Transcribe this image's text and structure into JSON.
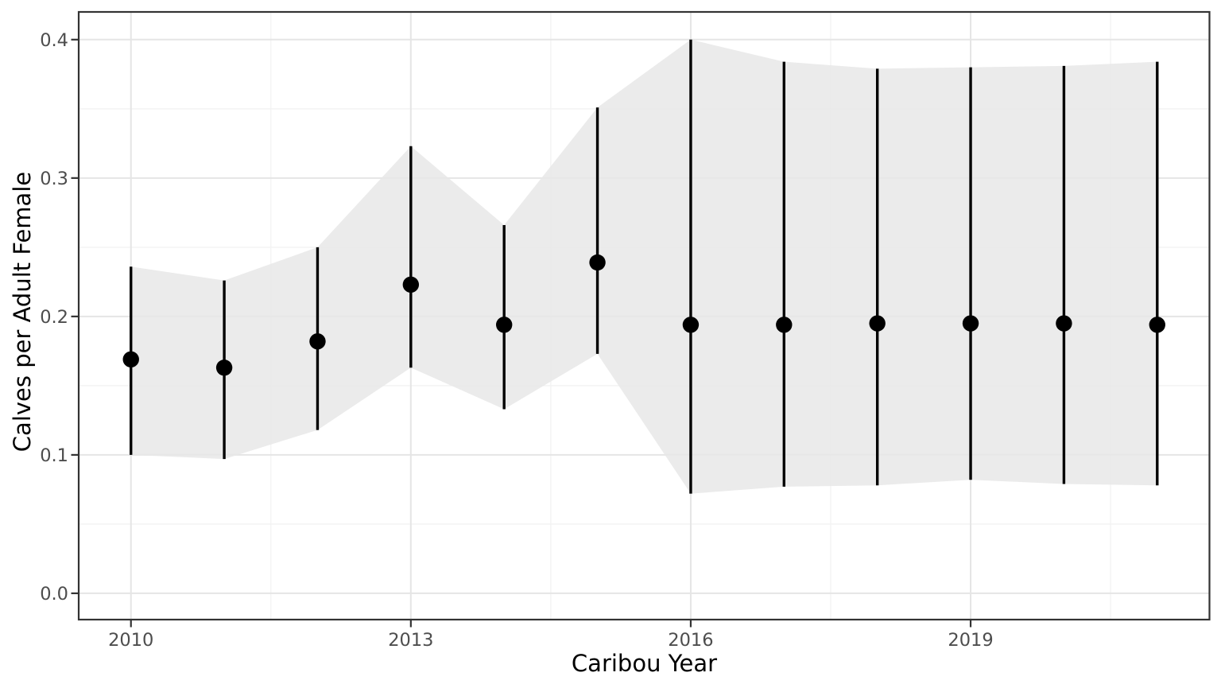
{
  "chart_data": {
    "type": "scatter",
    "subtype": "point-interval-with-ribbon",
    "title": "",
    "xlabel": "Caribou Year",
    "ylabel": "Calves per Adult Female",
    "x_ticks": [
      "2010",
      "2013",
      "2016",
      "2019"
    ],
    "x_tick_values": [
      2010,
      2013,
      2016,
      2019
    ],
    "x_minor_values": [
      2011.5,
      2014.5,
      2017.5,
      2020.5
    ],
    "y_ticks": [
      "0.0",
      "0.1",
      "0.2",
      "0.3",
      "0.4"
    ],
    "y_tick_values": [
      0.0,
      0.1,
      0.2,
      0.3,
      0.4
    ],
    "y_minor_values": [
      0.05,
      0.15,
      0.25,
      0.35
    ],
    "xlim": [
      2009.44,
      2021.56
    ],
    "ylim": [
      -0.019,
      0.42
    ],
    "grid": "on",
    "legend": "none",
    "series": [
      {
        "name": "calf-recruitment-estimate",
        "x": [
          2010,
          2011,
          2012,
          2013,
          2014,
          2015,
          2016,
          2017,
          2018,
          2019,
          2020,
          2021
        ],
        "y": [
          0.169,
          0.163,
          0.182,
          0.223,
          0.194,
          0.239,
          0.194,
          0.194,
          0.195,
          0.195,
          0.195,
          0.194
        ],
        "y_lower": [
          0.1,
          0.097,
          0.118,
          0.163,
          0.133,
          0.173,
          0.072,
          0.077,
          0.078,
          0.082,
          0.079,
          0.078
        ],
        "y_upper": [
          0.236,
          0.226,
          0.25,
          0.323,
          0.266,
          0.351,
          0.4,
          0.384,
          0.379,
          0.38,
          0.381,
          0.384
        ]
      }
    ],
    "colors": {
      "point": "#000000",
      "errorbar": "#000000",
      "ribbon": "#e7e7e7",
      "grid_major": "#e5e5e5",
      "grid_minor": "#f2f2f2",
      "panel_border": "#333333",
      "tick_mark": "#333333",
      "tick_label": "#4d4d4d",
      "axis_title": "#000000",
      "background": "#ffffff"
    }
  }
}
